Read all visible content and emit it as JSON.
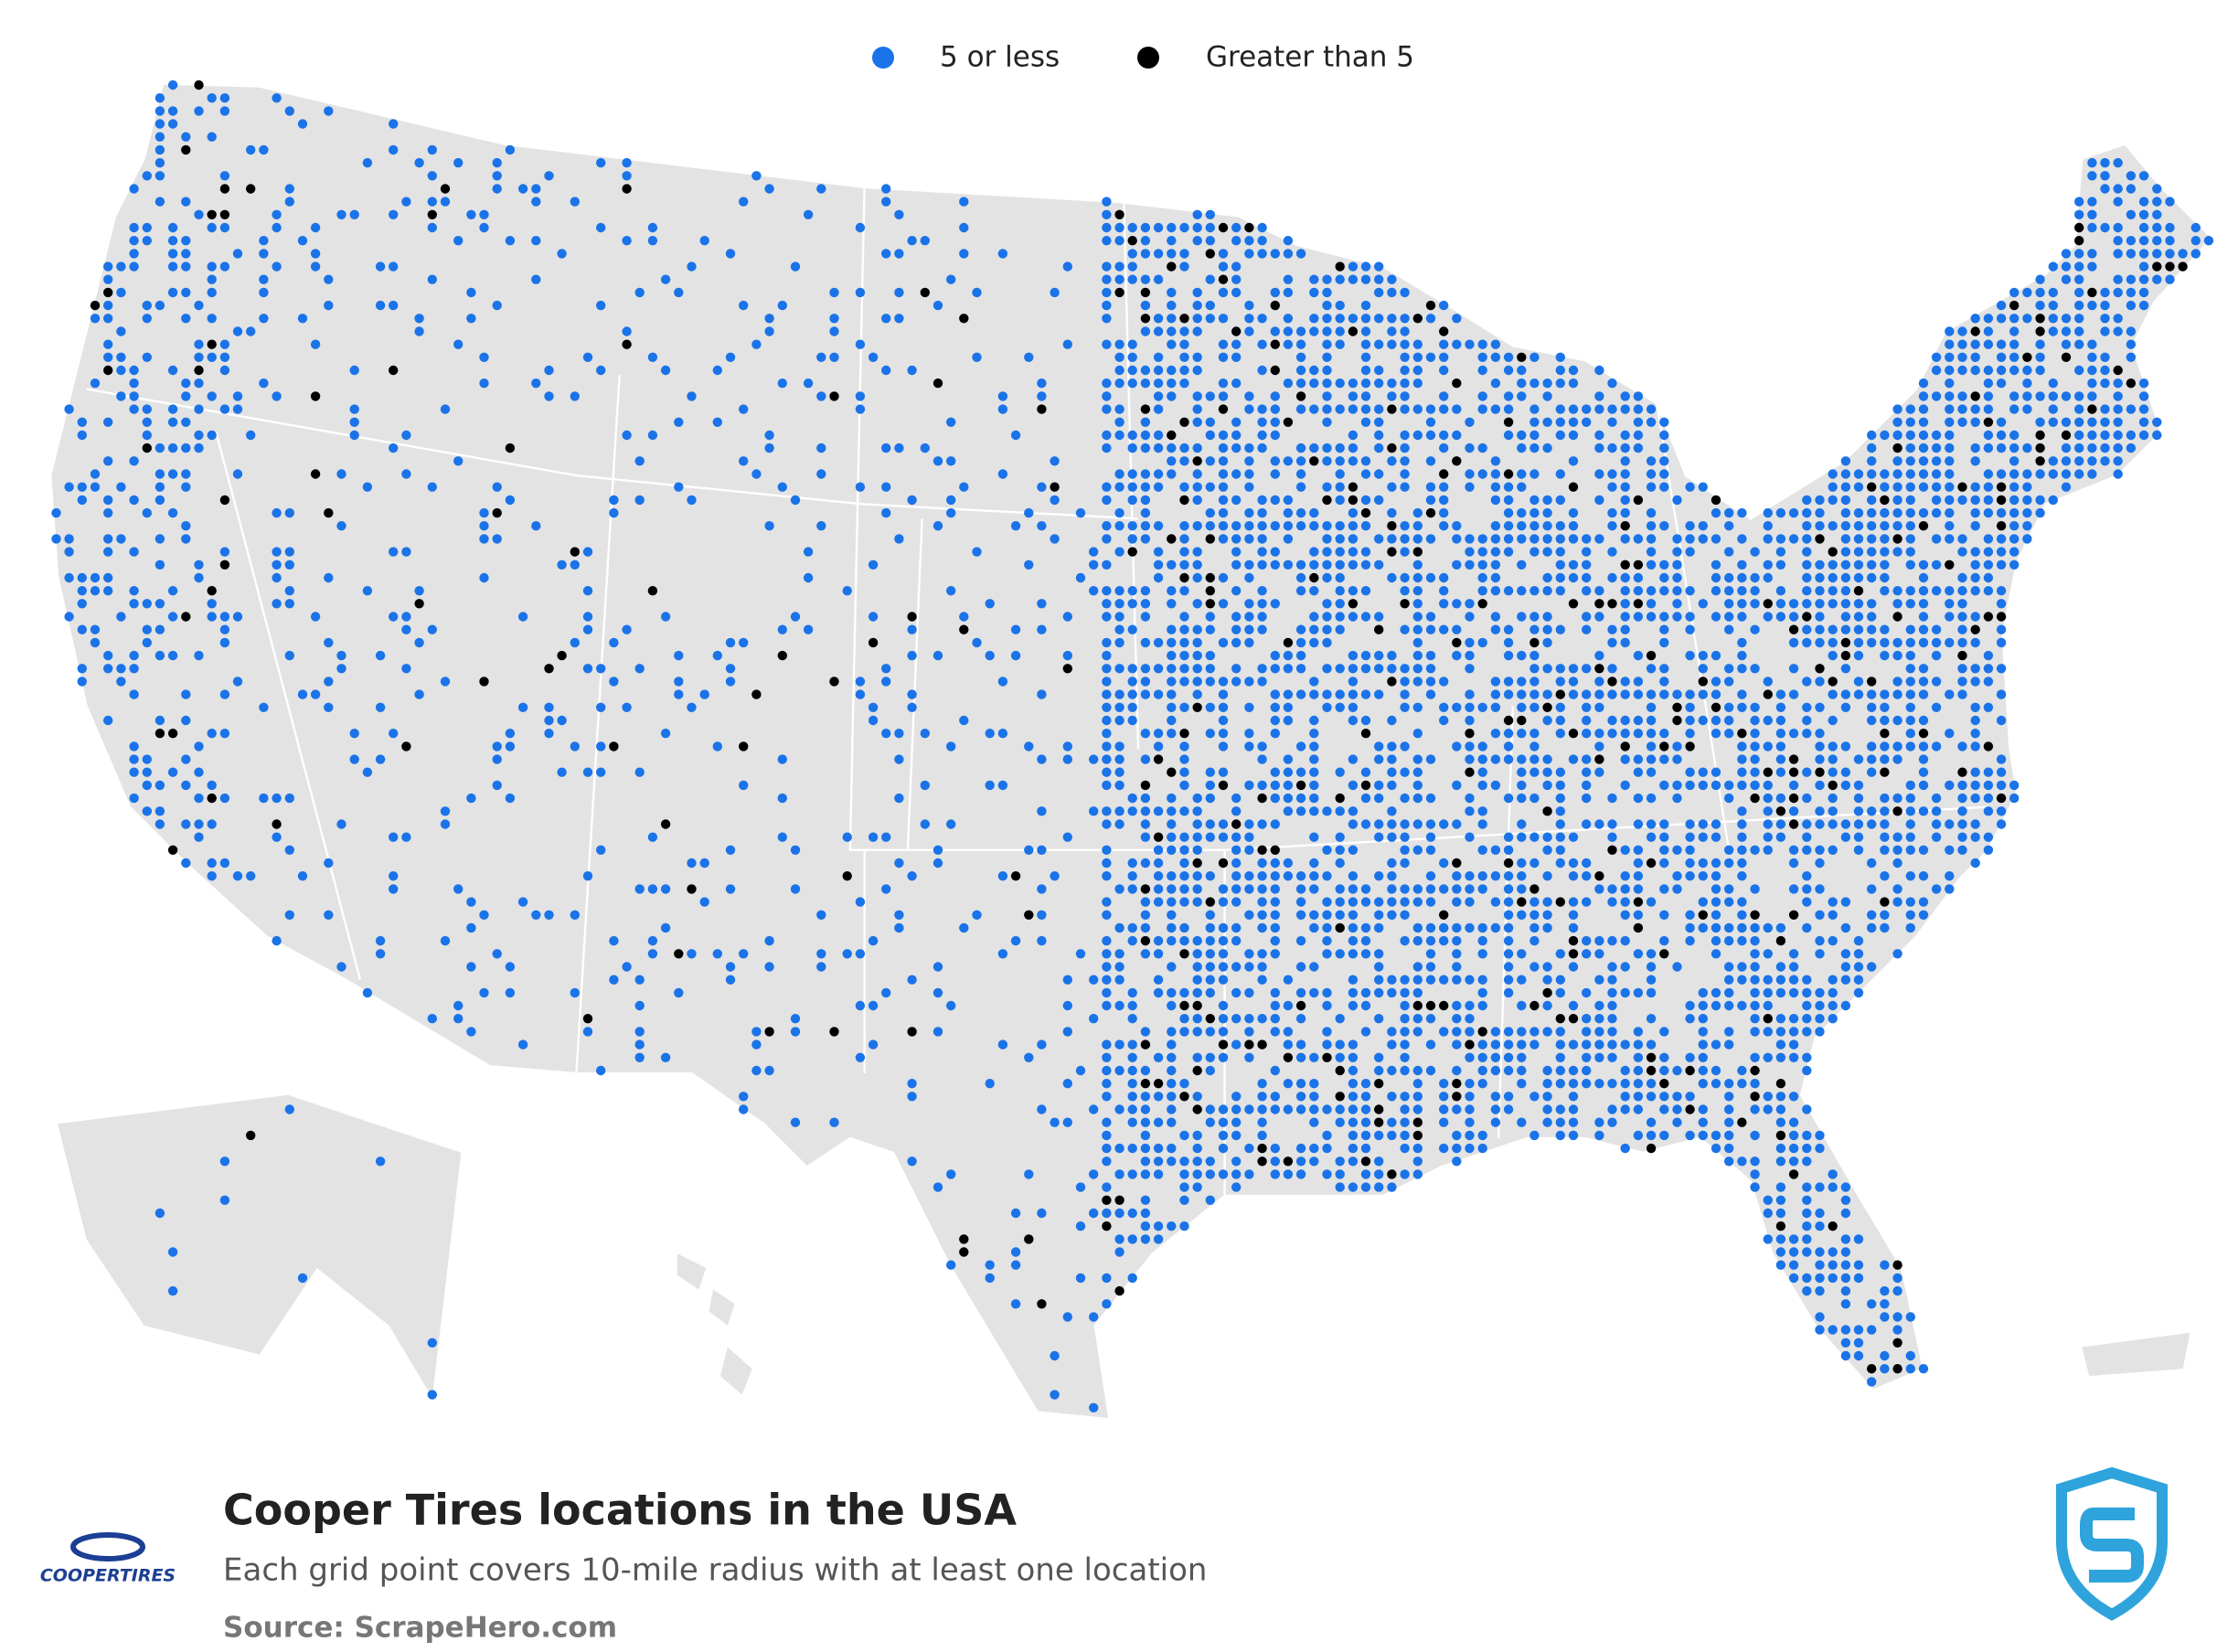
{
  "legend": [
    {
      "label": "5 or less",
      "color": "#1a73e8"
    },
    {
      "label": "Greater than 5",
      "color": "#000000"
    }
  ],
  "title": "Cooper Tires locations in the USA",
  "subtitle": "Each grid point covers 10-mile radius with at least one location",
  "source": "Source: ScrapeHero.com",
  "brand": "COOPERTIRES"
}
